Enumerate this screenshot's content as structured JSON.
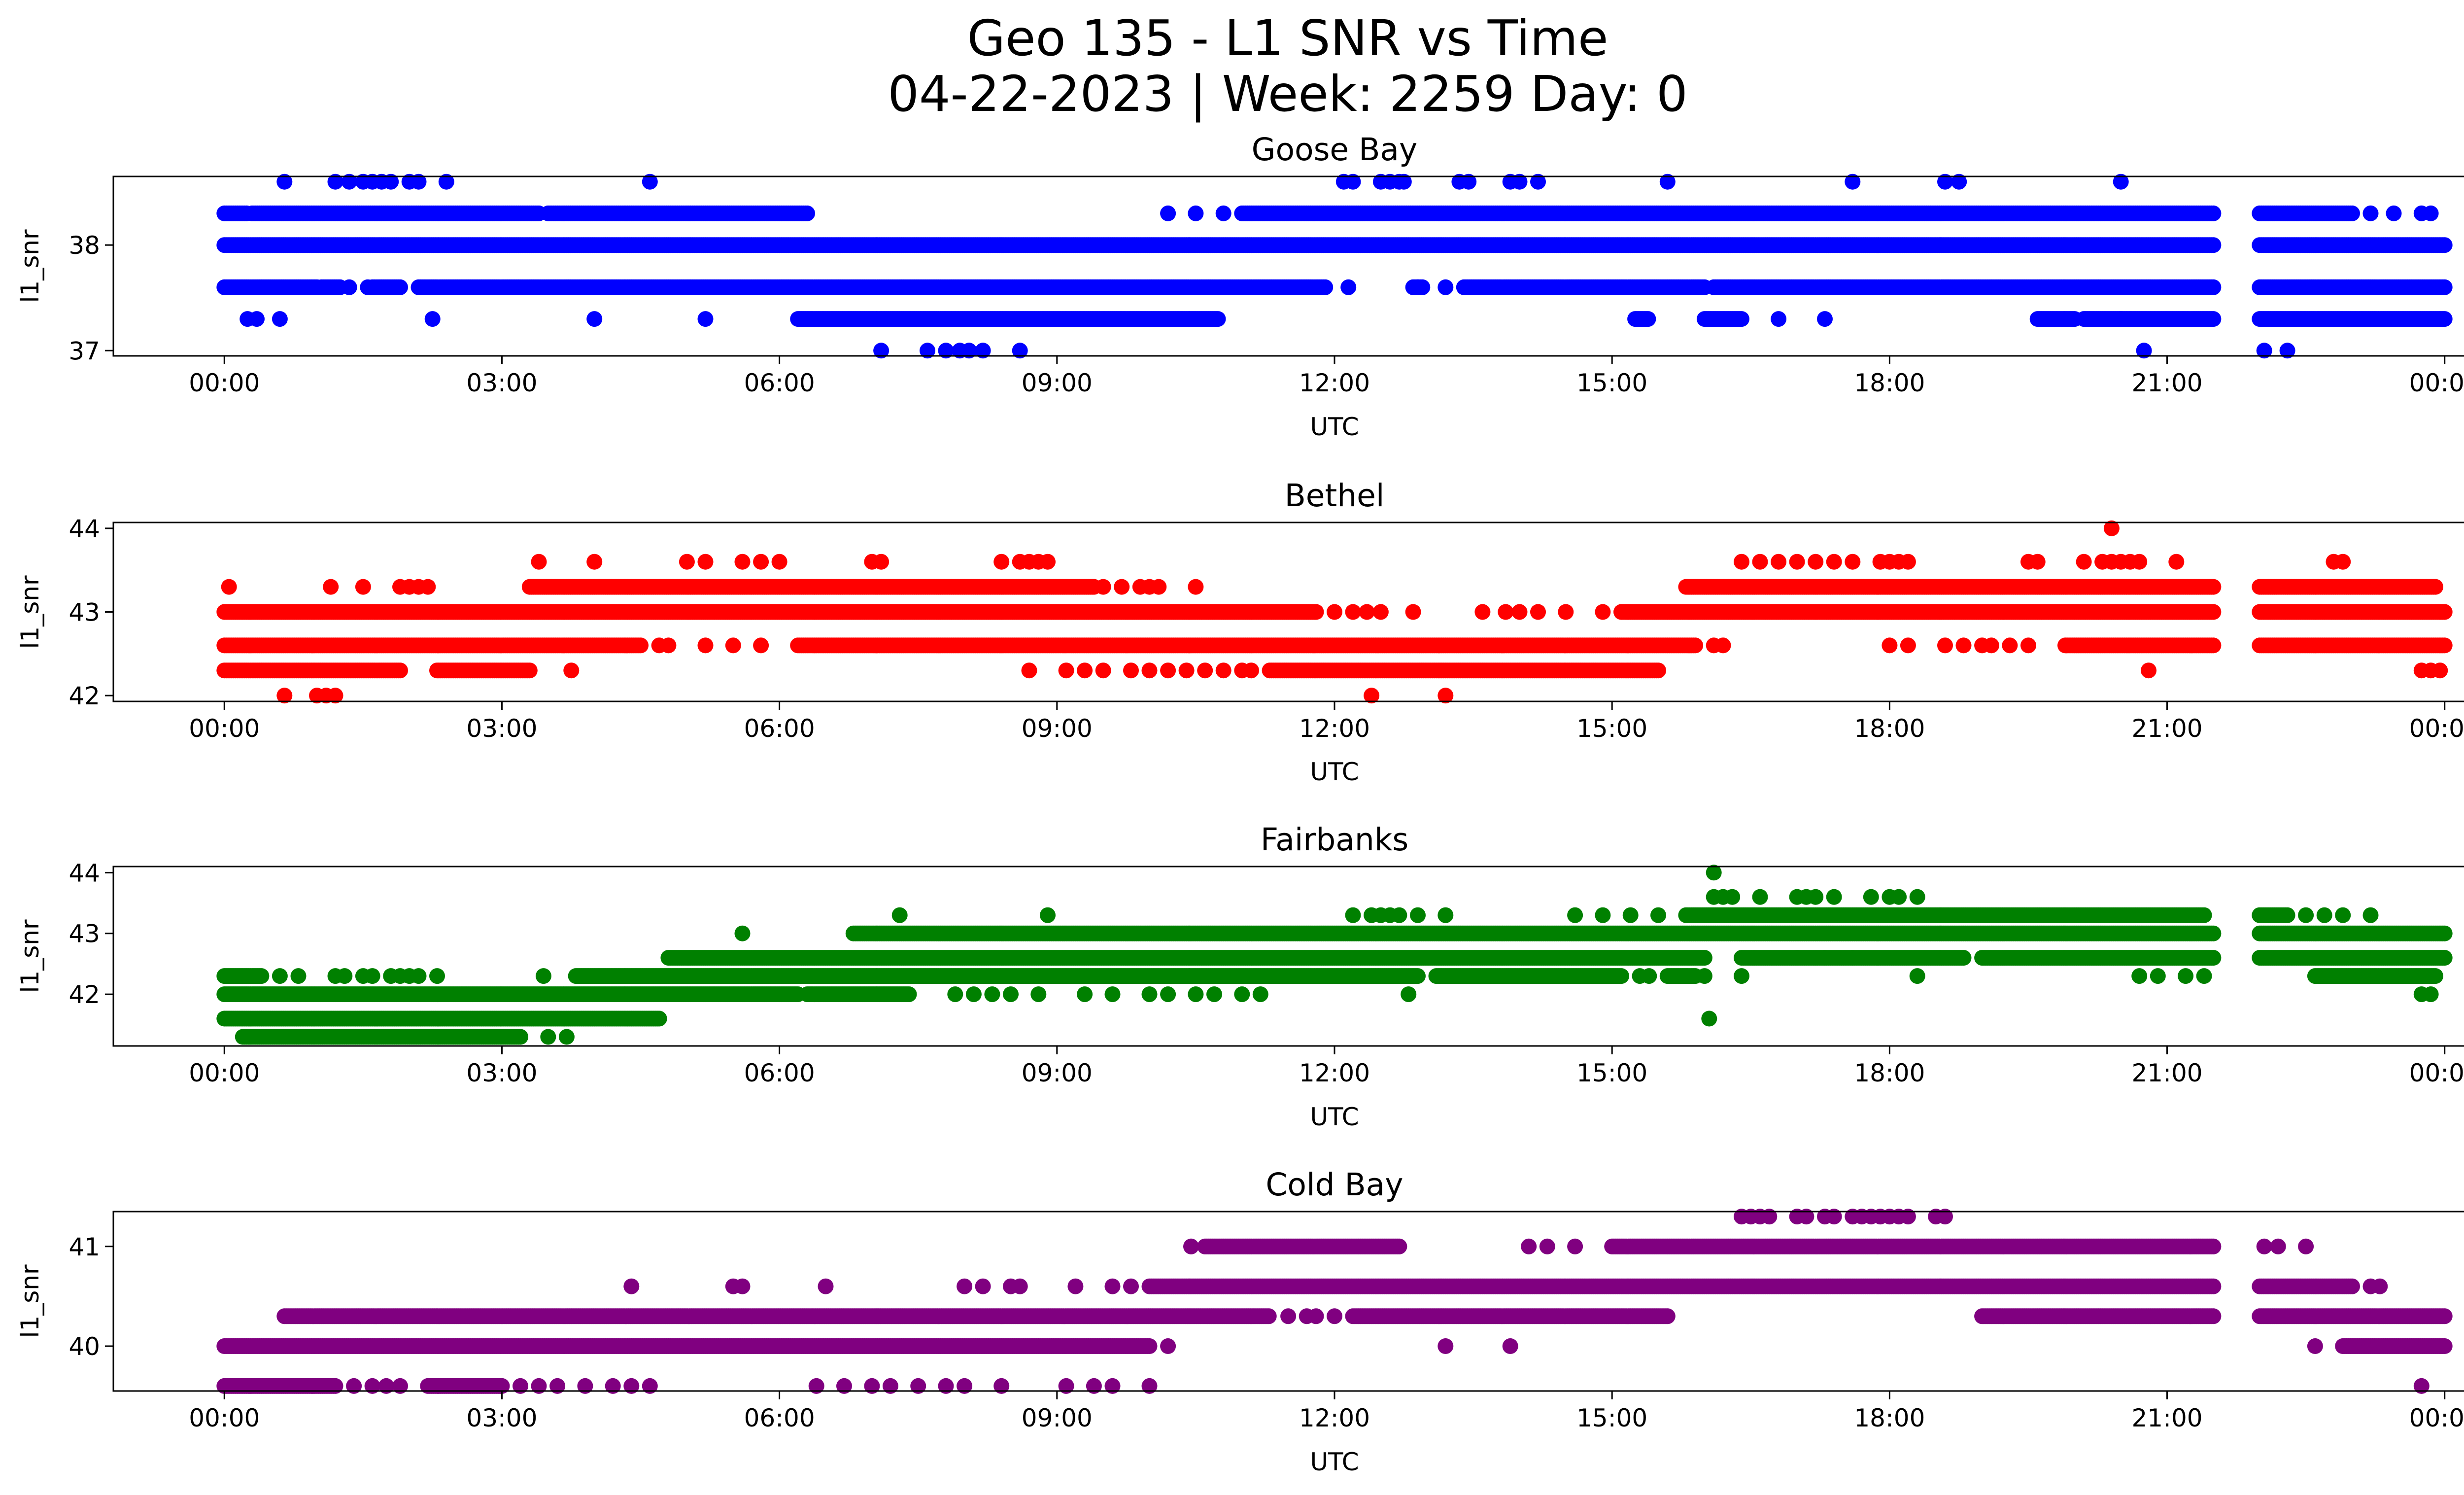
{
  "figure": {
    "title_line1": "Geo 135 - L1 SNR vs Time",
    "title_line2": "04-22-2023 | Week: 2259 Day: 0"
  },
  "chart_data": [
    {
      "type": "scatter",
      "title": "Goose Bay",
      "xlabel": "UTC",
      "ylabel": "l1_snr",
      "color": "#0000ff",
      "xlim_hours": [
        -1.2,
        25.2
      ],
      "ylim": [
        36.95,
        38.65
      ],
      "x_ticks": [
        "00:00",
        "03:00",
        "06:00",
        "09:00",
        "12:00",
        "15:00",
        "18:00",
        "21:00",
        "00:00"
      ],
      "x_tick_hours": [
        0,
        3,
        6,
        9,
        12,
        15,
        18,
        21,
        24
      ],
      "y_ticks": [
        37,
        38
      ],
      "grid": false,
      "data_gap_hours": [
        21.5,
        22.0
      ],
      "levels": [
        {
          "y": 38.6,
          "points": [
            0.65,
            1.2,
            1.35,
            1.5,
            1.6,
            1.7,
            1.8,
            2.0,
            2.1,
            2.4,
            4.6,
            12.1,
            12.2,
            12.5,
            12.6,
            12.7,
            12.75,
            13.35,
            13.45,
            13.9,
            14.0,
            14.2,
            15.6,
            17.6,
            18.6,
            18.75,
            20.5
          ]
        },
        {
          "y": 38.3,
          "runs": [
            [
              0.0,
              0.25
            ],
            [
              0.3,
              3.4
            ],
            [
              3.5,
              6.3
            ],
            [
              11.0,
              21.5
            ],
            [
              22.0,
              23.0
            ]
          ],
          "points": [
            10.2,
            10.5,
            10.8,
            23.2,
            23.45,
            23.75,
            23.85
          ]
        },
        {
          "y": 38.0,
          "runs": [
            [
              0.0,
              21.5
            ],
            [
              22.0,
              24.0
            ]
          ]
        },
        {
          "y": 37.6,
          "runs": [
            [
              0.0,
              1.0
            ],
            [
              1.05,
              1.25
            ],
            [
              1.6,
              1.9
            ],
            [
              2.1,
              11.9
            ],
            [
              12.85,
              12.95
            ],
            [
              13.4,
              16.0
            ],
            [
              16.1,
              21.5
            ],
            [
              22.0,
              24.0
            ]
          ],
          "points": [
            1.35,
            1.55,
            12.15,
            12.9,
            13.2
          ]
        },
        {
          "y": 37.3,
          "runs": [
            [
              6.2,
              10.75
            ],
            [
              15.25,
              15.4
            ],
            [
              16.0,
              16.4
            ],
            [
              19.6,
              20.0
            ],
            [
              20.1,
              20.5
            ],
            [
              20.5,
              21.5
            ],
            [
              22.0,
              24.0
            ]
          ],
          "points": [
            0.25,
            0.35,
            0.6,
            2.25,
            4.0,
            5.2,
            16.8,
            17.3
          ]
        },
        {
          "y": 37.0,
          "points": [
            7.1,
            7.6,
            7.8,
            7.95,
            8.05,
            8.2,
            8.6,
            20.75,
            22.05,
            22.3
          ]
        }
      ]
    },
    {
      "type": "scatter",
      "title": "Bethel",
      "xlabel": "UTC",
      "ylabel": "l1_snr",
      "color": "#ff0000",
      "xlim_hours": [
        -1.2,
        25.2
      ],
      "ylim": [
        41.93,
        44.07
      ],
      "x_ticks": [
        "00:00",
        "03:00",
        "06:00",
        "09:00",
        "12:00",
        "15:00",
        "18:00",
        "21:00",
        "00:00"
      ],
      "x_tick_hours": [
        0,
        3,
        6,
        9,
        12,
        15,
        18,
        21,
        24
      ],
      "y_ticks": [
        42,
        43,
        44
      ],
      "grid": false,
      "data_gap_hours": [
        21.5,
        22.0
      ],
      "levels": [
        {
          "y": 44.0,
          "points": [
            20.4
          ]
        },
        {
          "y": 43.6,
          "points": [
            3.4,
            4.0,
            5.0,
            5.2,
            5.6,
            5.8,
            6.0,
            7.0,
            7.1,
            8.4,
            8.6,
            8.7,
            8.8,
            8.9,
            16.4,
            16.6,
            16.8,
            17.0,
            17.2,
            17.4,
            17.6,
            17.9,
            18.0,
            18.1,
            18.2,
            19.5,
            19.6,
            20.1,
            20.3,
            20.4,
            20.5,
            20.6,
            20.7,
            21.1,
            22.8,
            22.9
          ]
        },
        {
          "y": 43.3,
          "runs": [
            [
              3.3,
              9.4
            ],
            [
              15.8,
              21.5
            ],
            [
              22.0,
              23.9
            ]
          ],
          "points": [
            0.05,
            1.15,
            1.5,
            1.9,
            2.0,
            2.1,
            2.2,
            9.5,
            9.7,
            9.9,
            10.0,
            10.1,
            10.5
          ]
        },
        {
          "y": 43.0,
          "runs": [
            [
              0.0,
              11.8
            ],
            [
              15.1,
              21.5
            ],
            [
              22.0,
              24.0
            ]
          ],
          "points": [
            12.0,
            12.2,
            12.35,
            12.5,
            12.85,
            13.6,
            13.85,
            14.0,
            14.2,
            14.5,
            14.9
          ]
        },
        {
          "y": 42.6,
          "runs": [
            [
              0.0,
              4.5
            ],
            [
              6.2,
              15.9
            ],
            [
              19.9,
              21.5
            ],
            [
              22.0,
              24.0
            ]
          ],
          "points": [
            4.7,
            4.8,
            5.2,
            5.5,
            5.8,
            16.1,
            16.2,
            18.0,
            18.2,
            18.6,
            18.8,
            19.0,
            19.1,
            19.3,
            19.5
          ]
        },
        {
          "y": 42.3,
          "runs": [
            [
              0.0,
              1.9
            ],
            [
              2.3,
              3.3
            ],
            [
              11.3,
              15.5
            ]
          ],
          "points": [
            3.75,
            8.7,
            9.1,
            9.3,
            9.5,
            9.8,
            10.0,
            10.2,
            10.4,
            10.6,
            10.8,
            11.0,
            11.1,
            20.8,
            23.75,
            23.85,
            23.95
          ]
        },
        {
          "y": 42.0,
          "points": [
            0.65,
            1.0,
            1.1,
            1.2,
            12.4,
            13.2
          ]
        }
      ]
    },
    {
      "type": "scatter",
      "title": "Fairbanks",
      "xlabel": "UTC",
      "ylabel": "l1_snr",
      "color": "#008000",
      "xlim_hours": [
        -1.2,
        25.2
      ],
      "ylim": [
        41.15,
        44.1
      ],
      "x_ticks": [
        "00:00",
        "03:00",
        "06:00",
        "09:00",
        "12:00",
        "15:00",
        "18:00",
        "21:00",
        "00:00"
      ],
      "x_tick_hours": [
        0,
        3,
        6,
        9,
        12,
        15,
        18,
        21,
        24
      ],
      "y_ticks": [
        42,
        43,
        44
      ],
      "grid": false,
      "data_gap_hours": [
        21.5,
        22.0
      ],
      "levels": [
        {
          "y": 44.0,
          "points": [
            16.1
          ]
        },
        {
          "y": 43.6,
          "points": [
            16.1,
            16.2,
            16.3,
            16.6,
            17.0,
            17.1,
            17.2,
            17.4,
            17.8,
            18.0,
            18.1,
            18.3
          ]
        },
        {
          "y": 43.3,
          "runs": [
            [
              15.8,
              21.4
            ],
            [
              22.0,
              22.3
            ]
          ],
          "points": [
            7.3,
            8.9,
            12.2,
            12.4,
            12.5,
            12.6,
            12.7,
            12.9,
            13.2,
            14.6,
            14.9,
            15.2,
            15.5,
            22.5,
            22.7,
            22.9,
            23.2
          ]
        },
        {
          "y": 43.0,
          "runs": [
            [
              6.8,
              21.5
            ],
            [
              22.0,
              24.0
            ]
          ],
          "points": [
            5.6
          ]
        },
        {
          "y": 42.6,
          "runs": [
            [
              4.8,
              16.0
            ],
            [
              16.4,
              18.8
            ],
            [
              19.0,
              21.5
            ],
            [
              22.0,
              24.0
            ]
          ],
          "points": [
            17.0,
            17.3,
            17.6
          ]
        },
        {
          "y": 42.3,
          "runs": [
            [
              0.0,
              0.4
            ],
            [
              3.8,
              12.9
            ],
            [
              13.1,
              15.1
            ],
            [
              15.6,
              15.9
            ],
            [
              22.6,
              23.9
            ]
          ],
          "points": [
            0.6,
            0.8,
            1.2,
            1.3,
            1.5,
            1.6,
            1.8,
            1.9,
            2.0,
            2.1,
            2.3,
            3.45,
            15.3,
            15.4,
            16.0,
            16.4,
            18.3,
            20.7,
            20.9,
            21.2,
            21.4
          ]
        },
        {
          "y": 42.0,
          "runs": [
            [
              0.0,
              6.2
            ],
            [
              6.3,
              7.4
            ]
          ],
          "points": [
            7.9,
            8.1,
            8.3,
            8.5,
            8.8,
            9.3,
            9.6,
            10.0,
            10.2,
            10.5,
            10.7,
            11.0,
            11.2,
            12.8,
            23.75,
            23.85
          ]
        },
        {
          "y": 41.6,
          "runs": [
            [
              0.0,
              4.7
            ]
          ],
          "points": [
            16.05
          ]
        },
        {
          "y": 41.3,
          "runs": [
            [
              0.2,
              3.2
            ]
          ],
          "points": [
            3.5,
            3.7
          ]
        }
      ]
    },
    {
      "type": "scatter",
      "title": "Cold Bay",
      "xlabel": "UTC",
      "ylabel": "l1_snr",
      "color": "#800080",
      "xlim_hours": [
        -1.2,
        25.2
      ],
      "ylim": [
        39.55,
        41.35
      ],
      "x_ticks": [
        "00:00",
        "03:00",
        "06:00",
        "09:00",
        "12:00",
        "15:00",
        "18:00",
        "21:00",
        "00:00"
      ],
      "x_tick_hours": [
        0,
        3,
        6,
        9,
        12,
        15,
        18,
        21,
        24
      ],
      "y_ticks": [
        40,
        41
      ],
      "grid": false,
      "data_gap_hours": [
        21.5,
        22.0
      ],
      "levels": [
        {
          "y": 41.3,
          "points": [
            16.4,
            16.5,
            16.6,
            16.7,
            17.0,
            17.1,
            17.3,
            17.4,
            17.6,
            17.7,
            17.8,
            17.9,
            18.0,
            18.1,
            18.2,
            18.5,
            18.6
          ]
        },
        {
          "y": 41.0,
          "runs": [
            [
              10.6,
              12.7
            ],
            [
              15.0,
              21.5
            ]
          ],
          "points": [
            10.45,
            14.1,
            14.3,
            14.6,
            22.05,
            22.2,
            22.5
          ]
        },
        {
          "y": 40.6,
          "runs": [
            [
              10.0,
              21.5
            ],
            [
              22.0,
              23.0
            ]
          ],
          "points": [
            4.4,
            5.5,
            5.6,
            6.5,
            8.0,
            8.2,
            8.5,
            8.6,
            9.2,
            9.6,
            9.8,
            23.2,
            23.3
          ]
        },
        {
          "y": 40.3,
          "runs": [
            [
              0.65,
              11.3
            ],
            [
              12.2,
              15.6
            ],
            [
              19.0,
              21.5
            ],
            [
              22.0,
              24.0
            ]
          ],
          "points": [
            11.5,
            11.7,
            11.8,
            12.0
          ]
        },
        {
          "y": 40.0,
          "runs": [
            [
              0.0,
              10.0
            ],
            [
              22.9,
              24.0
            ]
          ],
          "points": [
            10.2,
            13.2,
            13.9,
            22.6
          ]
        },
        {
          "y": 39.6,
          "runs": [
            [
              0.0,
              1.2
            ],
            [
              2.2,
              3.0
            ]
          ],
          "points": [
            1.4,
            1.6,
            1.75,
            1.9,
            3.2,
            3.4,
            3.6,
            3.9,
            4.2,
            4.4,
            4.6,
            6.4,
            6.7,
            7.0,
            7.2,
            7.5,
            7.8,
            8.0,
            8.4,
            9.1,
            9.4,
            9.6,
            10.0,
            23.75
          ]
        }
      ]
    }
  ]
}
